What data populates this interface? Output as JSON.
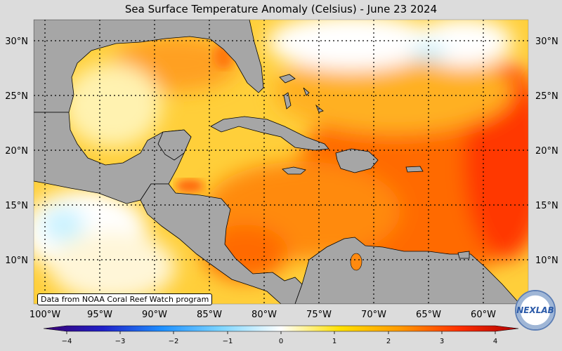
{
  "title": "Sea Surface Temperature Anomaly (Celsius) - June 23 2024",
  "credit": "Data from NOAA Coral Reef Watch program",
  "logo_text": "NEXLAB",
  "latitude_labels": [
    "30°N",
    "25°N",
    "20°N",
    "15°N",
    "10°N"
  ],
  "longitude_labels": [
    "100°W",
    "95°W",
    "90°W",
    "85°W",
    "80°W",
    "75°W",
    "70°W",
    "65°W",
    "60°W"
  ],
  "colorbar": {
    "ticks": [
      "−4",
      "−3",
      "−2",
      "−1",
      "0",
      "1",
      "2",
      "3",
      "4"
    ],
    "colors": [
      "#3a006f",
      "#2020c8",
      "#1e90ff",
      "#7fd6ff",
      "#ffffff",
      "#ffe000",
      "#ff9a00",
      "#ff3000",
      "#b00000"
    ]
  },
  "colors": {
    "land": "#a6a6a6",
    "ocean_warm": "#ff9a1a",
    "ocean_hot": "#ff4a00",
    "ocean_mild": "#ffe24a",
    "ocean_neutral": "#ffffff",
    "ocean_cool": "#a9ecff"
  }
}
